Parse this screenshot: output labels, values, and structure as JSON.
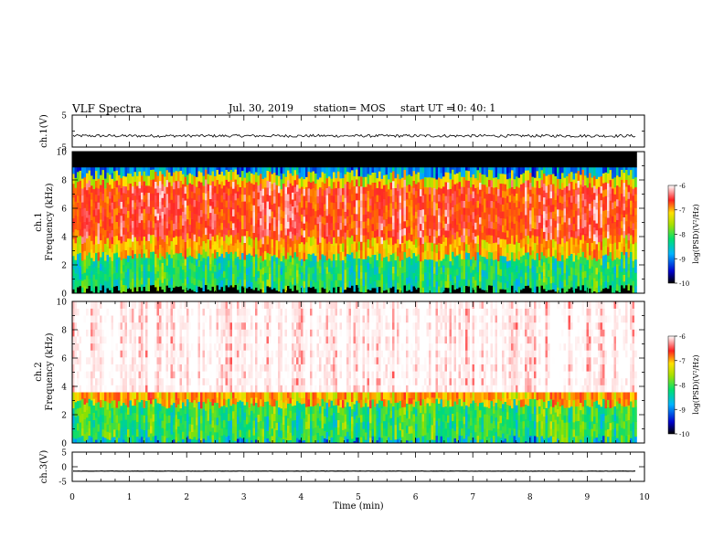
{
  "header": {
    "title": "VLF Spectra",
    "date": "Jul. 30, 2019",
    "station": "station= MOS",
    "start_label": "start UT =",
    "start_time": "10: 40: 1"
  },
  "chart_data": [
    {
      "type": "line",
      "panel": "ch1-waveform",
      "ylabel": "ch.1(V)",
      "ylim": [
        -5,
        5
      ],
      "yticks": [
        "5",
        "-5"
      ],
      "xlim": [
        0,
        10
      ],
      "trace_level": -1.5
    },
    {
      "type": "heatmap",
      "panel": "ch1-spectrogram",
      "ylabel_top": "ch.1",
      "ylabel": "Frequency (kHz)",
      "ylim": [
        0,
        10
      ],
      "yticks": [
        "0",
        "2",
        "4",
        "6",
        "8",
        "10"
      ],
      "xlim": [
        0,
        10
      ],
      "data_end_min": 9.83,
      "colorbar": {
        "label": "log(PSD)(V²/Hz)",
        "ticks": [
          "-6",
          "-7",
          "-8",
          "-9",
          "-10"
        ],
        "range": [
          -10,
          -6
        ]
      },
      "bands": [
        {
          "from_khz": 0.0,
          "to_khz": 0.25,
          "level": -11
        },
        {
          "from_khz": 0.25,
          "to_khz": 2.6,
          "level": -8.5
        },
        {
          "from_khz": 2.6,
          "to_khz": 3.8,
          "level": -7.3
        },
        {
          "from_khz": 3.8,
          "to_khz": 7.7,
          "level": -6.6
        },
        {
          "from_khz": 7.7,
          "to_khz": 8.4,
          "level": -7.6
        },
        {
          "from_khz": 8.4,
          "to_khz": 8.9,
          "level": -9.3
        },
        {
          "from_khz": 8.9,
          "to_khz": 10.0,
          "level": -11
        }
      ]
    },
    {
      "type": "heatmap",
      "panel": "ch2-spectrogram",
      "ylabel_top": "ch.2",
      "ylabel": "Frequency (kHz)",
      "ylim": [
        0,
        10
      ],
      "yticks": [
        "0",
        "2",
        "4",
        "6",
        "8",
        "10"
      ],
      "xlim": [
        0,
        10
      ],
      "data_end_min": 9.83,
      "colorbar": {
        "label": "log(PSD)(V²/Hz)",
        "ticks": [
          "-6",
          "-7",
          "-8",
          "-9",
          "-10"
        ],
        "range": [
          -10,
          -6
        ]
      },
      "bands": [
        {
          "from_khz": 0.0,
          "to_khz": 0.2,
          "level": -9.2
        },
        {
          "from_khz": 0.2,
          "to_khz": 2.8,
          "level": -8.4
        },
        {
          "from_khz": 2.8,
          "to_khz": 3.6,
          "level": -7.2
        },
        {
          "from_khz": 3.6,
          "to_khz": 10.0,
          "level": -5.6
        }
      ]
    },
    {
      "type": "line",
      "panel": "ch3-waveform",
      "ylabel": "ch.3(V)",
      "ylim": [
        -5,
        5
      ],
      "yticks": [
        "5",
        "0",
        "-5"
      ],
      "xlim": [
        0,
        10
      ],
      "xlabel": "Time (min)",
      "xticks": [
        "0",
        "1",
        "2",
        "3",
        "4",
        "5",
        "6",
        "7",
        "8",
        "9",
        "10"
      ],
      "trace_level": -1.5
    }
  ]
}
